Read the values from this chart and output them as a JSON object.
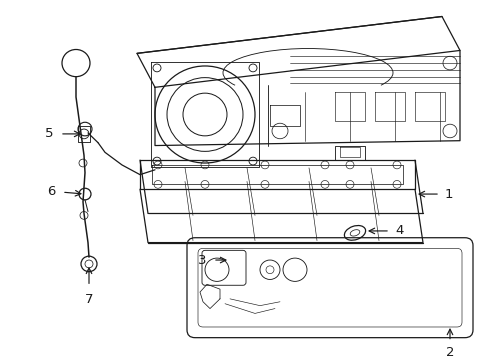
{
  "background_color": "#ffffff",
  "line_color": "#1a1a1a",
  "line_width": 0.9,
  "figure_width": 4.89,
  "figure_height": 3.6,
  "dpi": 100
}
